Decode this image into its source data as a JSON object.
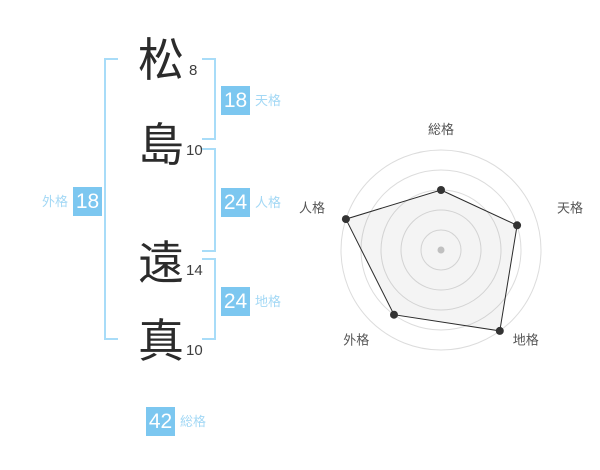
{
  "name": {
    "chars": [
      {
        "char": "松",
        "strokes": "8"
      },
      {
        "char": "島",
        "strokes": "10"
      },
      {
        "char": "遠",
        "strokes": "14"
      },
      {
        "char": "真",
        "strokes": "10"
      }
    ]
  },
  "kaku": {
    "ten": {
      "label": "天格",
      "value": "18"
    },
    "jin": {
      "label": "人格",
      "value": "24"
    },
    "chi": {
      "label": "地格",
      "value": "24"
    },
    "gai": {
      "label": "外格",
      "value": "18"
    },
    "sou": {
      "label": "総格",
      "value": "42"
    }
  },
  "colors": {
    "accent": "#7cc7f0",
    "accent_light": "#a3d8f5",
    "bracket": "#a8dcf8",
    "ring": "#dcdcdc",
    "polygon_stroke": "#2b2b2b",
    "polygon_fill": "rgba(60,60,60,0.06)",
    "vertex_dot": "#333333",
    "center_dot": "#c8c8c8",
    "axis_label": "#555555"
  },
  "chart_data": {
    "type": "radar",
    "axes": [
      "総格",
      "天格",
      "地格",
      "外格",
      "人格"
    ],
    "values": [
      3,
      4,
      5,
      4,
      5
    ],
    "max": 5,
    "rings": 5,
    "axis_order": "clockwise-from-top",
    "grid": "concentric-circles",
    "legend": false
  }
}
